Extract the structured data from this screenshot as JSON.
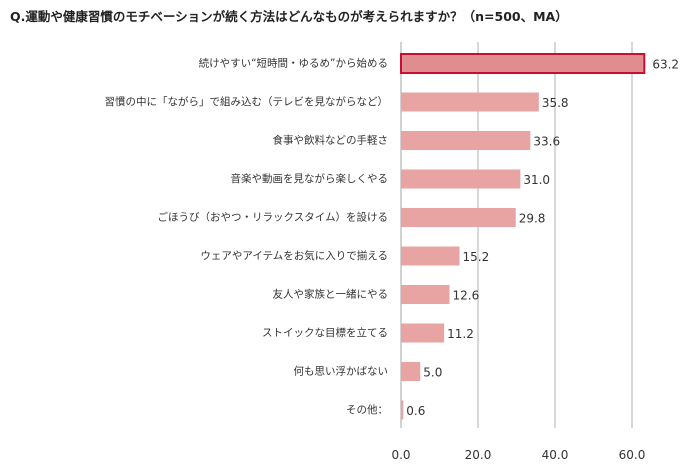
{
  "chart_data": {
    "type": "bar",
    "orientation": "horizontal",
    "title": "Q.運動や健康習慣のモチベーションが続く方法はどんなものが考えられますか？（n=500、MA）",
    "categories": [
      "続けやすい“短時間・ゆるめ”から始める",
      "習慣の中に「ながら」で組み込む（テレビを見ながらなど）",
      "食事や飲料などの手軽さ",
      "音楽や動画を見ながら楽しくやる",
      "ごほうび（おやつ・リラックスタイム）を設ける",
      "ウェアやアイテムをお気に入りで揃える",
      "友人や家族と一緒にやる",
      "ストイックな目標を立てる",
      "何も思い浮かばない",
      "その他："
    ],
    "values": [
      63.2,
      35.8,
      33.6,
      31.0,
      29.8,
      15.2,
      12.6,
      11.2,
      5.0,
      0.6
    ],
    "value_labels": [
      "63.2",
      "35.8",
      "33.6",
      "31.0",
      "29.8",
      "15.2",
      "12.6",
      "11.2",
      "5.0",
      "0.6"
    ],
    "xlim": [
      0,
      70
    ],
    "xticks": [
      0,
      20,
      40,
      60
    ],
    "xtick_labels": [
      "0.0",
      "20.0",
      "40.0",
      "60.0"
    ],
    "grid": true,
    "highlight_index": 0,
    "colors": {
      "bar": "#e8a3a3",
      "highlight_fill": "#e08d92",
      "highlight_border": "#c8102e",
      "gridline": "#bfbfbf"
    }
  }
}
